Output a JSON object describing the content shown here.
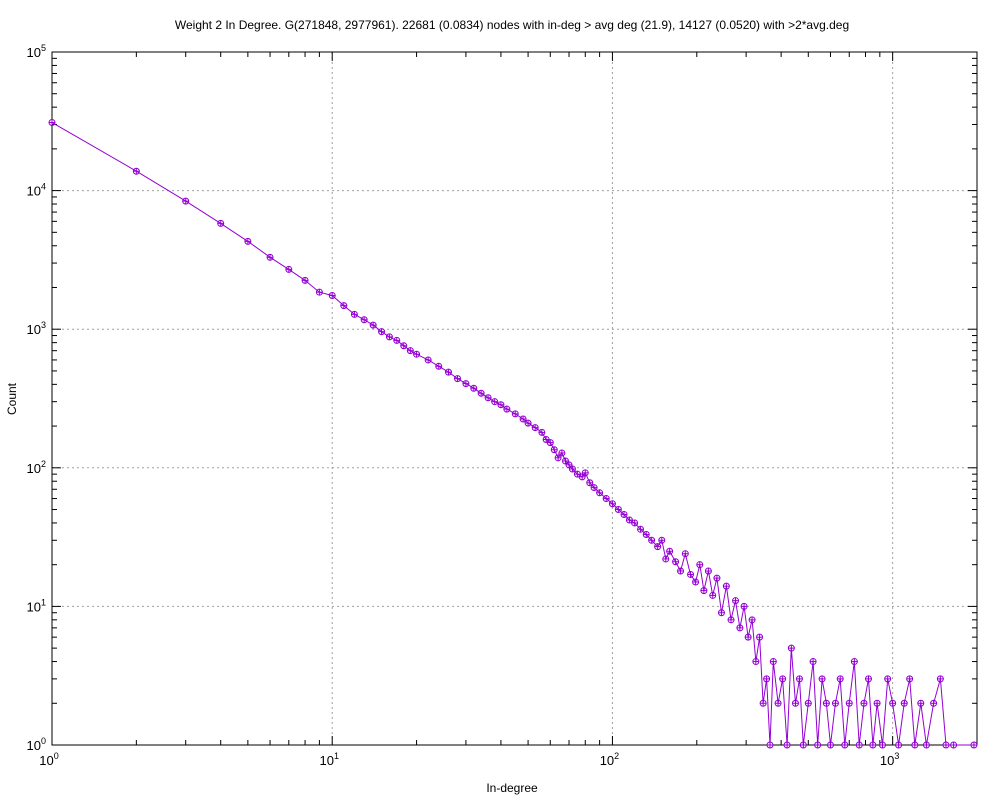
{
  "chart_data": {
    "type": "scatter",
    "title": "Weight 2 In Degree. G(271848, 2977961). 22681 (0.0834) nodes with in-deg > avg deg (21.9), 14127 (0.0520) with >2*avg.deg",
    "xlabel": "In-degree",
    "ylabel": "Count",
    "xscale": "log",
    "yscale": "log",
    "xlim": [
      1,
      2000
    ],
    "ylim": [
      1,
      100000
    ],
    "grid": true,
    "legend": "none",
    "x_ticks": [
      {
        "base": "10",
        "exp": "0"
      },
      {
        "base": "10",
        "exp": "1"
      },
      {
        "base": "10",
        "exp": "2"
      },
      {
        "base": "10",
        "exp": "3"
      }
    ],
    "y_ticks": [
      {
        "base": "10",
        "exp": "0"
      },
      {
        "base": "10",
        "exp": "1"
      },
      {
        "base": "10",
        "exp": "2"
      },
      {
        "base": "10",
        "exp": "3"
      },
      {
        "base": "10",
        "exp": "4"
      },
      {
        "base": "10",
        "exp": "5"
      }
    ],
    "series": [
      {
        "color": "#9400d3",
        "marker": "circle-plus",
        "connected": true,
        "points": [
          [
            1,
            31000
          ],
          [
            2,
            13800
          ],
          [
            3,
            8400
          ],
          [
            4,
            5800
          ],
          [
            5,
            4300
          ],
          [
            6,
            3300
          ],
          [
            7,
            2700
          ],
          [
            8,
            2250
          ],
          [
            9,
            1850
          ],
          [
            10,
            1750
          ],
          [
            11,
            1480
          ],
          [
            12,
            1280
          ],
          [
            13,
            1170
          ],
          [
            14,
            1070
          ],
          [
            15,
            960
          ],
          [
            16,
            880
          ],
          [
            17,
            830
          ],
          [
            18,
            760
          ],
          [
            19,
            700
          ],
          [
            20,
            660
          ],
          [
            22,
            600
          ],
          [
            24,
            540
          ],
          [
            26,
            490
          ],
          [
            28,
            440
          ],
          [
            30,
            405
          ],
          [
            32,
            375
          ],
          [
            34,
            345
          ],
          [
            36,
            320
          ],
          [
            38,
            300
          ],
          [
            40,
            285
          ],
          [
            42,
            265
          ],
          [
            45,
            245
          ],
          [
            48,
            225
          ],
          [
            50,
            210
          ],
          [
            53,
            195
          ],
          [
            56,
            180
          ],
          [
            58,
            160
          ],
          [
            60,
            152
          ],
          [
            62,
            135
          ],
          [
            64,
            118
          ],
          [
            66,
            128
          ],
          [
            68,
            112
          ],
          [
            70,
            105
          ],
          [
            72,
            98
          ],
          [
            75,
            90
          ],
          [
            78,
            86
          ],
          [
            80,
            92
          ],
          [
            83,
            78
          ],
          [
            86,
            72
          ],
          [
            90,
            66
          ],
          [
            95,
            60
          ],
          [
            100,
            55
          ],
          [
            105,
            50
          ],
          [
            110,
            46
          ],
          [
            115,
            42
          ],
          [
            120,
            40
          ],
          [
            126,
            36
          ],
          [
            132,
            33
          ],
          [
            138,
            30
          ],
          [
            145,
            27
          ],
          [
            150,
            30
          ],
          [
            155,
            22
          ],
          [
            160,
            25
          ],
          [
            168,
            21
          ],
          [
            175,
            18
          ],
          [
            182,
            24
          ],
          [
            190,
            17
          ],
          [
            198,
            15
          ],
          [
            205,
            20
          ],
          [
            212,
            13
          ],
          [
            220,
            18
          ],
          [
            228,
            12
          ],
          [
            236,
            16
          ],
          [
            245,
            9
          ],
          [
            255,
            14
          ],
          [
            265,
            8
          ],
          [
            275,
            11
          ],
          [
            285,
            7
          ],
          [
            295,
            10
          ],
          [
            305,
            6
          ],
          [
            315,
            8
          ],
          [
            325,
            4
          ],
          [
            335,
            6
          ],
          [
            345,
            2
          ],
          [
            355,
            3
          ],
          [
            365,
            1
          ],
          [
            375,
            4
          ],
          [
            390,
            2
          ],
          [
            405,
            3
          ],
          [
            420,
            1
          ],
          [
            435,
            5
          ],
          [
            450,
            2
          ],
          [
            465,
            3
          ],
          [
            480,
            1
          ],
          [
            500,
            2
          ],
          [
            520,
            4
          ],
          [
            540,
            1
          ],
          [
            560,
            3
          ],
          [
            580,
            2
          ],
          [
            600,
            1
          ],
          [
            625,
            2
          ],
          [
            650,
            3
          ],
          [
            675,
            1
          ],
          [
            700,
            2
          ],
          [
            730,
            4
          ],
          [
            760,
            1
          ],
          [
            790,
            2
          ],
          [
            820,
            3
          ],
          [
            850,
            1
          ],
          [
            880,
            2
          ],
          [
            920,
            1
          ],
          [
            960,
            3
          ],
          [
            1000,
            2
          ],
          [
            1050,
            1
          ],
          [
            1100,
            2
          ],
          [
            1150,
            3
          ],
          [
            1200,
            1
          ],
          [
            1260,
            2
          ],
          [
            1320,
            1
          ],
          [
            1400,
            2
          ],
          [
            1480,
            3
          ],
          [
            1550,
            1
          ],
          [
            1650,
            1
          ],
          [
            1950,
            1
          ]
        ]
      }
    ]
  }
}
